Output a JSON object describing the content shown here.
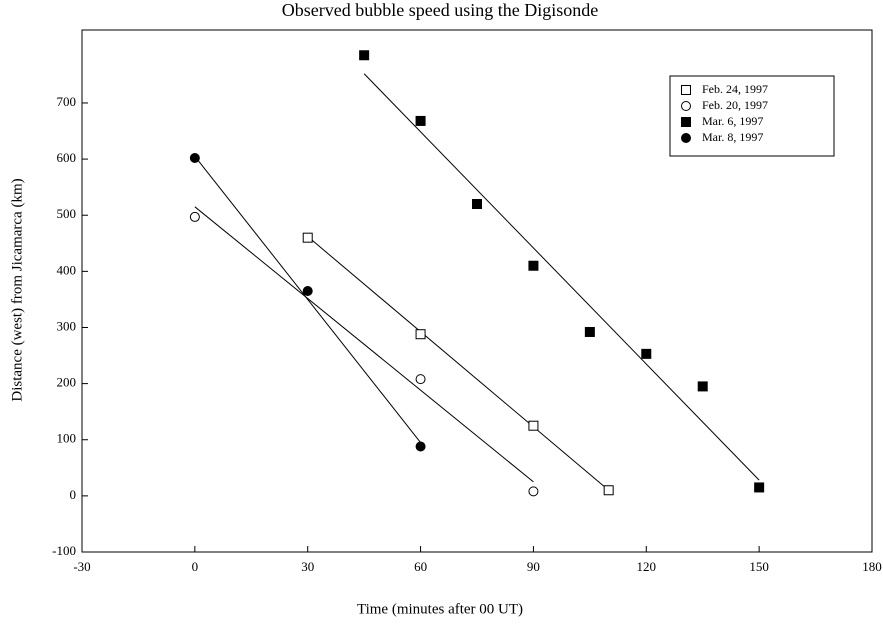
{
  "chart_data": {
    "type": "scatter",
    "title": "Observed bubble speed using the Digisonde",
    "x_label": "Time (minutes after 00 UT)",
    "y_label": "Distance (west) from Jicamarca (km)",
    "xlim": [
      -30,
      180
    ],
    "ylim": [
      -100,
      830
    ],
    "xticks": [
      -30,
      0,
      30,
      60,
      90,
      120,
      150,
      180
    ],
    "yticks": [
      -100,
      0,
      100,
      200,
      300,
      400,
      500,
      600,
      700
    ],
    "legend": "upper right",
    "series": [
      {
        "name": "Feb. 24, 1997",
        "marker": "square",
        "filled": false,
        "color": "#000000",
        "x": [
          30,
          60,
          90,
          110
        ],
        "values": [
          460,
          288,
          125,
          10
        ],
        "fit_x": [
          30,
          110
        ],
        "fit_y": [
          462,
          10
        ]
      },
      {
        "name": "Feb. 20, 1997",
        "marker": "circle",
        "filled": false,
        "color": "#000000",
        "x": [
          0,
          60,
          90
        ],
        "values": [
          497,
          208,
          8
        ],
        "fit_x": [
          0,
          90
        ],
        "fit_y": [
          515,
          25
        ]
      },
      {
        "name": "Mar. 6, 1997",
        "marker": "square",
        "filled": true,
        "color": "#000000",
        "x": [
          45,
          60,
          75,
          90,
          105,
          120,
          135,
          150
        ],
        "values": [
          785,
          668,
          520,
          410,
          292,
          253,
          195,
          15
        ],
        "fit_x": [
          45,
          150
        ],
        "fit_y": [
          752,
          28
        ]
      },
      {
        "name": "Mar. 8, 1997",
        "marker": "circle",
        "filled": true,
        "color": "#000000",
        "x": [
          0,
          30,
          60
        ],
        "values": [
          602,
          365,
          88
        ],
        "fit_x": [
          0,
          60
        ],
        "fit_y": [
          605,
          95
        ]
      }
    ]
  }
}
